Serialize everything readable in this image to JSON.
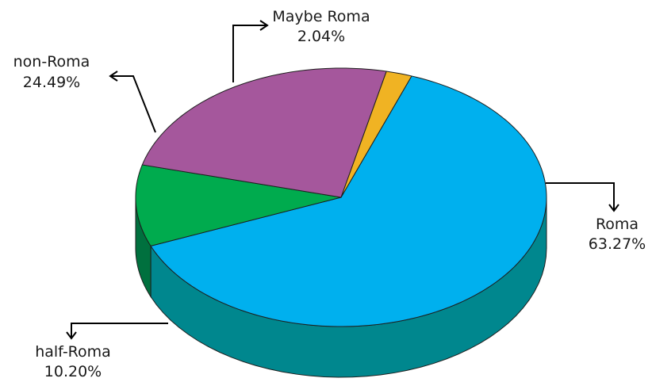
{
  "chart_data": {
    "type": "pie",
    "style": "3d",
    "slices": [
      {
        "label": "Roma",
        "value": 63.27,
        "display": "63.27%",
        "color": "#00B0EE",
        "side_color": "#00878E"
      },
      {
        "label": "half-Roma",
        "value": 10.2,
        "display": "10.20%",
        "color": "#00AB4E",
        "side_color": "#00703E"
      },
      {
        "label": "non-Roma",
        "value": 24.49,
        "display": "24.49%",
        "color": "#A5579C",
        "side_color": "#5E2D64"
      },
      {
        "label": "Maybe Roma",
        "value": 2.04,
        "display": "2.04%",
        "color": "#F0B323",
        "side_color": "#9A6A10"
      }
    ],
    "legend": "none"
  }
}
